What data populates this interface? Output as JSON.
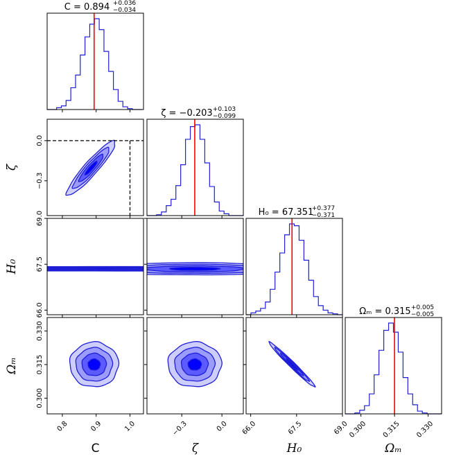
{
  "chart_data": {
    "type": "corner",
    "title": "",
    "parameters": [
      {
        "key": "C",
        "label": "C",
        "range": [
          0.755,
          1.04
        ],
        "ticks": [
          0.8,
          0.9,
          1.0
        ],
        "tick_labels": [
          "0.8",
          "0.9",
          "1.0"
        ],
        "best_fit": 0.894,
        "title_main": "C = 0.894",
        "title_plus": "+0.036",
        "title_minus": "−0.034",
        "truth": 1.0
      },
      {
        "key": "zeta",
        "label": "ζ",
        "range": [
          -0.56,
          0.16
        ],
        "ticks": [
          -0.3,
          0.0
        ],
        "tick_labels": [
          "−0.3",
          "0.0"
        ],
        "best_fit": -0.203,
        "title_main": "ζ = −0.203",
        "title_plus": "+0.103",
        "title_minus": "−0.099",
        "truth": 0.0
      },
      {
        "key": "H0",
        "label": "H₀",
        "range": [
          65.85,
          69.0
        ],
        "ticks": [
          66.0,
          67.5,
          69.0
        ],
        "tick_labels": [
          "66.0",
          "67.5",
          "69.0"
        ],
        "best_fit": 67.351,
        "title_main": "H₀ = 67.351",
        "title_plus": "+0.377",
        "title_minus": "−0.371"
      },
      {
        "key": "Om",
        "label": "Ωₘ",
        "range": [
          0.293,
          0.336
        ],
        "ticks": [
          0.3,
          0.315,
          0.33
        ],
        "tick_labels": [
          "0.300",
          "0.315",
          "0.330"
        ],
        "best_fit": 0.315,
        "title_main": "Ωₘ = 0.315",
        "title_plus": "+0.005",
        "title_minus": "−0.005"
      }
    ],
    "histograms": [
      {
        "param": "C",
        "bin_edges": [
          0.755,
          0.769,
          0.783,
          0.797,
          0.811,
          0.825,
          0.839,
          0.853,
          0.867,
          0.881,
          0.895,
          0.909,
          0.923,
          0.937,
          0.951,
          0.965,
          0.979,
          0.993,
          1.007,
          1.021,
          1.035
        ],
        "counts": [
          0,
          0,
          2,
          4,
          10,
          24,
          38,
          60,
          80,
          94,
          100,
          88,
          64,
          42,
          22,
          9,
          3,
          1,
          0,
          0
        ]
      },
      {
        "param": "zeta",
        "bin_edges": [
          -0.56,
          -0.524,
          -0.488,
          -0.452,
          -0.416,
          -0.38,
          -0.344,
          -0.308,
          -0.272,
          -0.236,
          -0.2,
          -0.164,
          -0.128,
          -0.092,
          -0.056,
          -0.02,
          0.016,
          0.052,
          0.088,
          0.124,
          0.16
        ],
        "counts": [
          0,
          0,
          1,
          4,
          11,
          18,
          33,
          56,
          84,
          98,
          100,
          84,
          58,
          32,
          15,
          5,
          2,
          0,
          0,
          0
        ]
      },
      {
        "param": "H0",
        "bin_edges": [
          65.85,
          66.0075,
          66.165,
          66.3225,
          66.48,
          66.6375,
          66.795,
          66.9525,
          67.11,
          67.2675,
          67.425,
          67.5825,
          67.74,
          67.8975,
          68.055,
          68.2125,
          68.37,
          68.5275,
          68.685,
          68.8425,
          69.0
        ],
        "counts": [
          0,
          2,
          4,
          7,
          14,
          28,
          47,
          68,
          88,
          100,
          98,
          82,
          60,
          38,
          20,
          10,
          5,
          2,
          1,
          0
        ]
      },
      {
        "param": "Om",
        "bin_edges": [
          0.293,
          0.29515,
          0.2973,
          0.29945,
          0.3016,
          0.30375,
          0.3059,
          0.30805,
          0.3102,
          0.31235,
          0.3145,
          0.31665,
          0.3188,
          0.32095,
          0.3231,
          0.32525,
          0.3274,
          0.32955,
          0.3317,
          0.33385,
          0.336
        ],
        "counts": [
          0,
          0,
          1,
          4,
          9,
          22,
          43,
          70,
          92,
          100,
          90,
          68,
          40,
          22,
          10,
          3,
          1,
          0,
          0,
          0
        ]
      }
    ],
    "contours": [
      {
        "x": "C",
        "y": "zeta",
        "center": [
          0.885,
          -0.205
        ],
        "sigma": [
          0.036,
          0.102
        ],
        "rho": 0.93
      },
      {
        "x": "C",
        "y": "H0",
        "center": [
          0.894,
          67.35
        ],
        "sigma": [
          0.036,
          0.375
        ],
        "rho": 0.0
      },
      {
        "x": "zeta",
        "y": "H0",
        "center": [
          -0.203,
          67.35
        ],
        "sigma": [
          0.1,
          0.375
        ],
        "rho": 0.0
      },
      {
        "x": "C",
        "y": "Om",
        "center": [
          0.894,
          0.315
        ],
        "sigma": [
          0.036,
          0.005
        ],
        "rho": 0.0
      },
      {
        "x": "zeta",
        "y": "Om",
        "center": [
          -0.203,
          0.315
        ],
        "sigma": [
          0.1,
          0.005
        ],
        "rho": 0.0
      },
      {
        "x": "H0",
        "y": "Om",
        "center": [
          67.35,
          0.315
        ],
        "sigma": [
          0.375,
          0.005
        ],
        "rho": -0.985
      }
    ],
    "levels": [
      0.5,
      1.0,
      1.5,
      2.0
    ],
    "colors": {
      "contour_line": "#1f1fd6",
      "fill_1": "#0000ff",
      "fill_2": "#5b5bff",
      "fill_3": "#9c9cff",
      "fill_4": "#cdcdff",
      "best_fit_line": "#ff0000",
      "truth_line": "#000000"
    }
  }
}
